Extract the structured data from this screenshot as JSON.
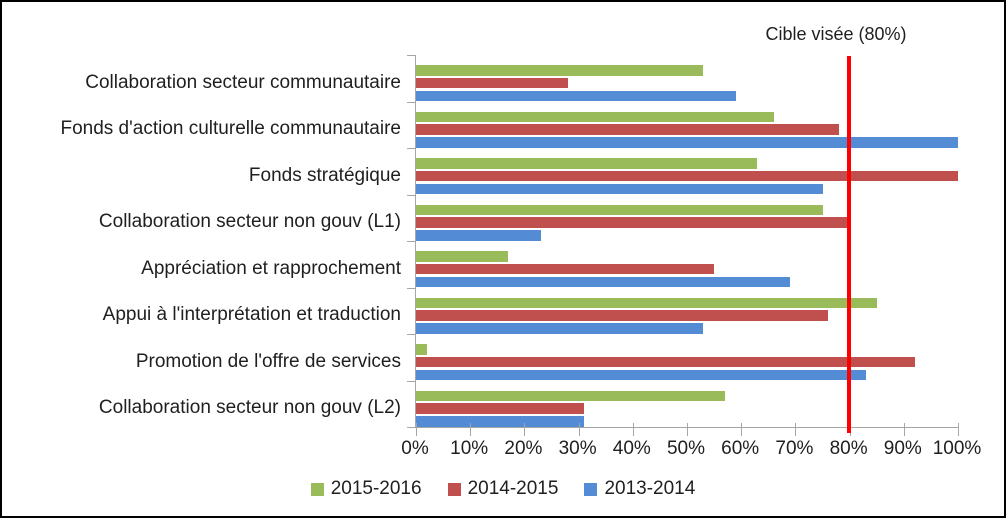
{
  "annotation": {
    "target_label": "Cible visée (80%)"
  },
  "chart_data": {
    "type": "bar",
    "orientation": "horizontal",
    "title": "",
    "xlabel": "",
    "ylabel": "",
    "xlim": [
      0,
      100
    ],
    "grid": false,
    "legend_position": "bottom",
    "axis_color": "#a6a6a6",
    "categories": [
      "Collaboration secteur communautaire",
      "Fonds d'action culturelle communautaire",
      "Fonds stratégique",
      "Collaboration secteur non gouv (L1)",
      "Appréciation et rapprochement",
      "Appui à l'interprétation et traduction",
      "Promotion de l'offre de services",
      "Collaboration secteur non gouv (L2)"
    ],
    "series": [
      {
        "name": "2015-2016",
        "color": "#9ABB59",
        "values": [
          53,
          66,
          63,
          75,
          17,
          85,
          2,
          57
        ]
      },
      {
        "name": "2014-2015",
        "color": "#C0504D",
        "values": [
          28,
          78,
          100,
          80,
          55,
          76,
          92,
          31
        ]
      },
      {
        "name": "2013-2014",
        "color": "#538BD5",
        "values": [
          59,
          100,
          75,
          23,
          69,
          53,
          83,
          31
        ]
      }
    ],
    "x_ticks": [
      "0%",
      "10%",
      "20%",
      "30%",
      "40%",
      "50%",
      "60%",
      "70%",
      "80%",
      "90%",
      "100%"
    ],
    "target_line": {
      "label": "Cible visée (80%)",
      "value": 80,
      "color": "#FF0000"
    }
  }
}
